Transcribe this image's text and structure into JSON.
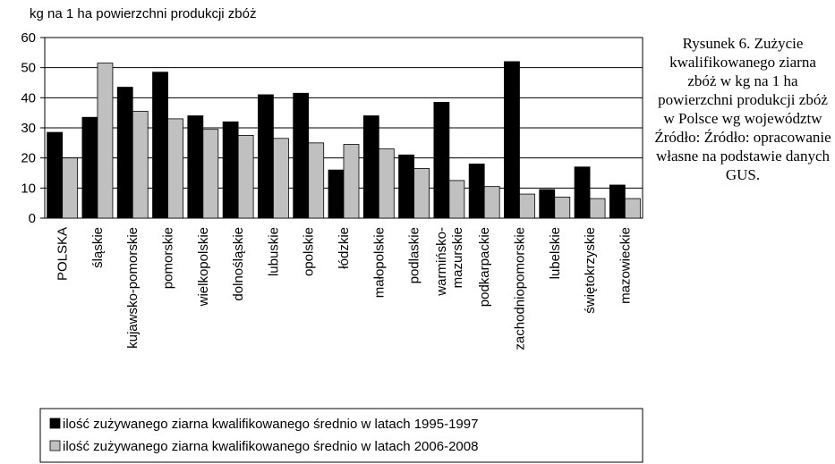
{
  "chart_data": {
    "type": "bar",
    "y_label": "kg na 1 ha powierzchni produkcji zbóż",
    "categories": [
      "POLSKA",
      "śląskie",
      "kujawsko-pomorskie",
      "pomorskie",
      "wielkopolskie",
      "dolnośląskie",
      "lubuskie",
      "opolskie",
      "łódzkie",
      "małopolskie",
      "podlaskie",
      "warmińsko-mazurskie",
      "podkarpackie",
      "zachodniopomorskie",
      "lubelskie",
      "świętokrzyskie",
      "mazowieckie"
    ],
    "series": [
      {
        "name": "ilość zużywanego ziarna kwalifikowanego średnio w latach 1995-1997",
        "color": "#000000",
        "values": [
          28.5,
          33.5,
          43.5,
          48.5,
          34,
          32,
          41,
          41.5,
          16,
          34,
          21,
          38.5,
          18,
          52,
          9.5,
          17,
          11
        ]
      },
      {
        "name": "ilość zużywanego ziarna kwalifikowanego średnio w latach 2006-2008",
        "color": "#c0c0c0",
        "values": [
          20,
          51.5,
          35.5,
          33,
          29.5,
          27.5,
          26.5,
          25,
          24.5,
          23,
          16.5,
          12.5,
          10.5,
          8,
          7,
          6.5,
          6.5
        ]
      }
    ],
    "ylim": [
      0,
      60
    ],
    "yticks": [
      0,
      10,
      20,
      30,
      40,
      50,
      60
    ],
    "grid": true,
    "caption": "Rysunek 6. Zużycie kwalifikowanego ziarna zbóż w kg na 1 ha powierzchni produkcji zbóż w Polsce wg województw",
    "source": "Źródło: Źródło: opracowanie własne na podstawie danych GUS."
  }
}
